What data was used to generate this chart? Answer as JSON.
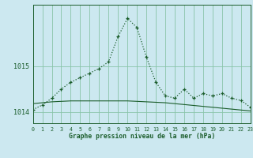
{
  "title": "Graphe pression niveau de la mer (hPa)",
  "background_color": "#cce8f0",
  "grid_color": "#88c4a8",
  "line_color": "#1a5c2a",
  "x_values": [
    0,
    1,
    2,
    3,
    4,
    5,
    6,
    7,
    8,
    9,
    10,
    11,
    12,
    13,
    14,
    15,
    16,
    17,
    18,
    19,
    20,
    21,
    22,
    23
  ],
  "line1": [
    1014.05,
    1014.15,
    1014.3,
    1014.5,
    1014.65,
    1014.75,
    1014.85,
    1014.95,
    1015.1,
    1015.65,
    1016.05,
    1015.85,
    1015.2,
    1014.65,
    1014.35,
    1014.3,
    1014.5,
    1014.3,
    1014.4,
    1014.35,
    1014.4,
    1014.3,
    1014.25,
    1014.1
  ],
  "line2": [
    1014.18,
    1014.2,
    1014.22,
    1014.23,
    1014.24,
    1014.24,
    1014.24,
    1014.24,
    1014.24,
    1014.24,
    1014.24,
    1014.23,
    1014.22,
    1014.21,
    1014.2,
    1014.18,
    1014.16,
    1014.14,
    1014.12,
    1014.1,
    1014.08,
    1014.06,
    1014.04,
    1014.02
  ],
  "ylim": [
    1013.75,
    1016.35
  ],
  "yticks": [
    1014,
    1015
  ],
  "xlim": [
    0,
    23
  ],
  "xticks": [
    0,
    1,
    2,
    3,
    4,
    5,
    6,
    7,
    8,
    9,
    10,
    11,
    12,
    13,
    14,
    15,
    16,
    17,
    18,
    19,
    20,
    21,
    22,
    23
  ],
  "figwidth": 3.2,
  "figheight": 2.0,
  "dpi": 100
}
